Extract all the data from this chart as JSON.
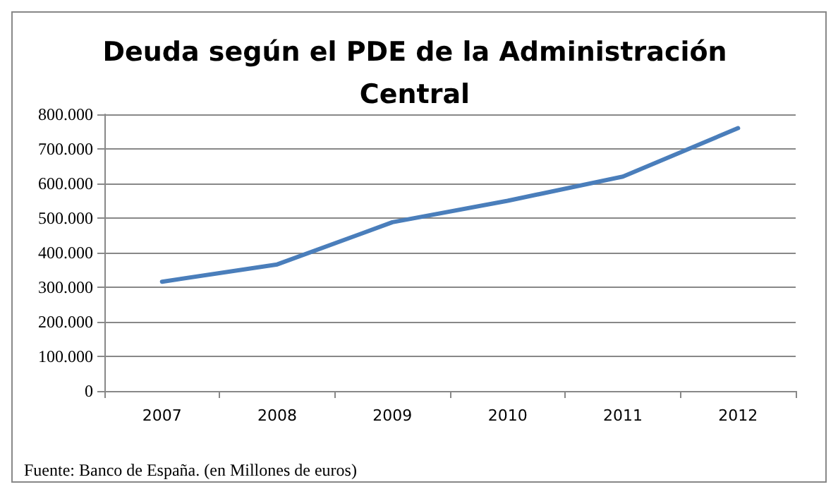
{
  "chart_data": {
    "type": "line",
    "title": "Deuda según el PDE de la Administración\nCentral",
    "categories": [
      "2007",
      "2008",
      "2009",
      "2010",
      "2011",
      "2012"
    ],
    "series": [
      {
        "color": "#4a7ebb",
        "values": [
          316000,
          366000,
          488000,
          550000,
          620000,
          760000
        ]
      }
    ],
    "ylim": [
      0,
      800000
    ],
    "yticks": [
      0,
      {
        "value": 100000,
        "label": "100.000"
      },
      {
        "value": 200000,
        "label": "200.000"
      },
      {
        "value": 300000,
        "label": "300.000"
      },
      {
        "value": 400000,
        "label": "400.000"
      },
      {
        "value": 500000,
        "label": "500.000"
      },
      {
        "value": 600000,
        "label": "600.000"
      },
      {
        "value": 700000,
        "label": "700.000"
      },
      {
        "value": 800000,
        "label": "800.000"
      }
    ],
    "grid": "y",
    "marker": "none",
    "line_style": "solid",
    "annotations": [
      "Fuente: Banco de España. (en Millones de euros)"
    ]
  }
}
